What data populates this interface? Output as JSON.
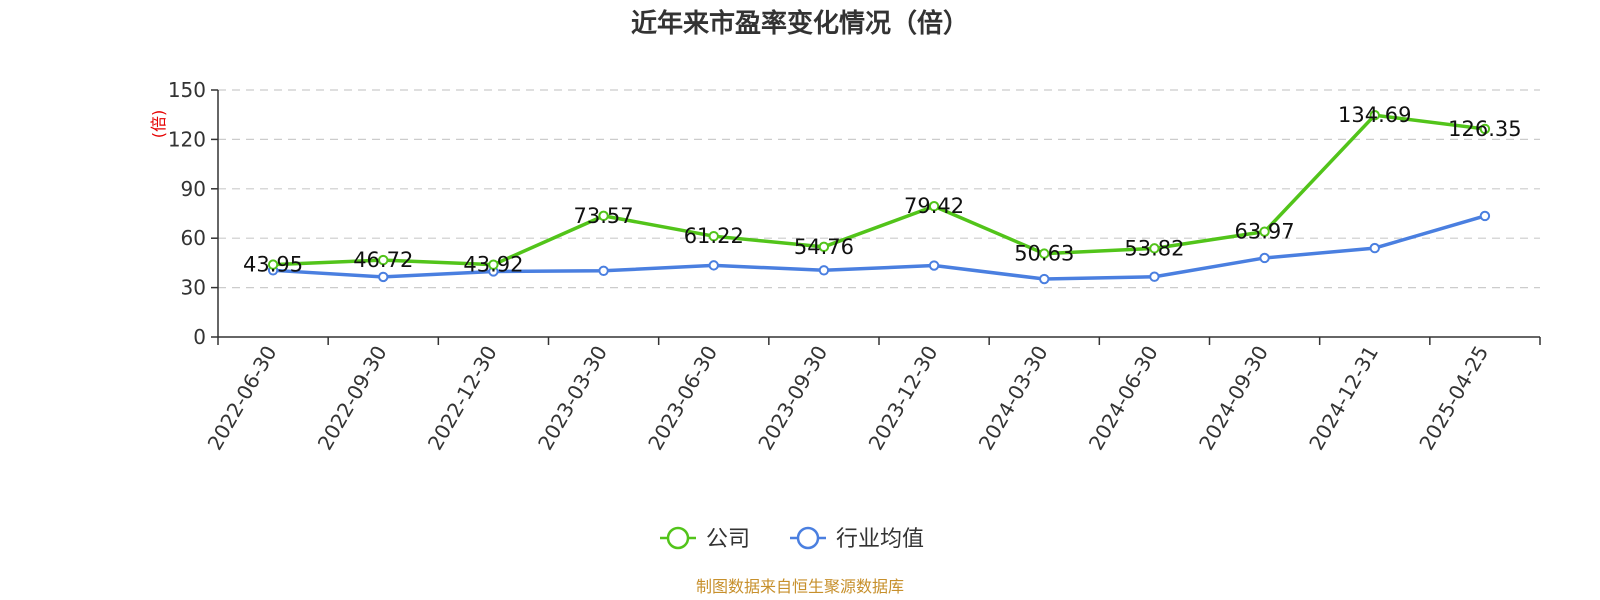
{
  "chart_data": {
    "type": "line",
    "title": "近年来市盈率变化情况（倍）",
    "ylabel": "(倍)",
    "ylim": [
      0,
      150
    ],
    "yticks": [
      0,
      30,
      60,
      90,
      120,
      150
    ],
    "grid": true,
    "legend_position": "bottom",
    "categories": [
      "2022-06-30",
      "2022-09-30",
      "2022-12-30",
      "2023-03-30",
      "2023-06-30",
      "2023-09-30",
      "2023-12-30",
      "2024-03-30",
      "2024-06-30",
      "2024-09-30",
      "2024-12-31",
      "2025-04-25"
    ],
    "series": [
      {
        "name": "公司",
        "color": "#52c41a",
        "values": [
          43.95,
          46.72,
          43.92,
          73.57,
          61.22,
          54.76,
          79.42,
          50.63,
          53.82,
          63.97,
          134.69,
          126.35
        ],
        "labels": [
          "43.95",
          "46.72",
          "43.92",
          "73.57",
          "61.22",
          "54.76",
          "79.42",
          "50.63",
          "53.82",
          "63.97",
          "134.69",
          "126.35"
        ]
      },
      {
        "name": "行业均值",
        "color": "#4a7fe0",
        "values": [
          40.5,
          36.5,
          39.8,
          40.2,
          43.5,
          40.5,
          43.4,
          35.2,
          36.6,
          48.0,
          54.0,
          73.5
        ]
      }
    ],
    "source": "制图数据来自恒生聚源数据库"
  }
}
